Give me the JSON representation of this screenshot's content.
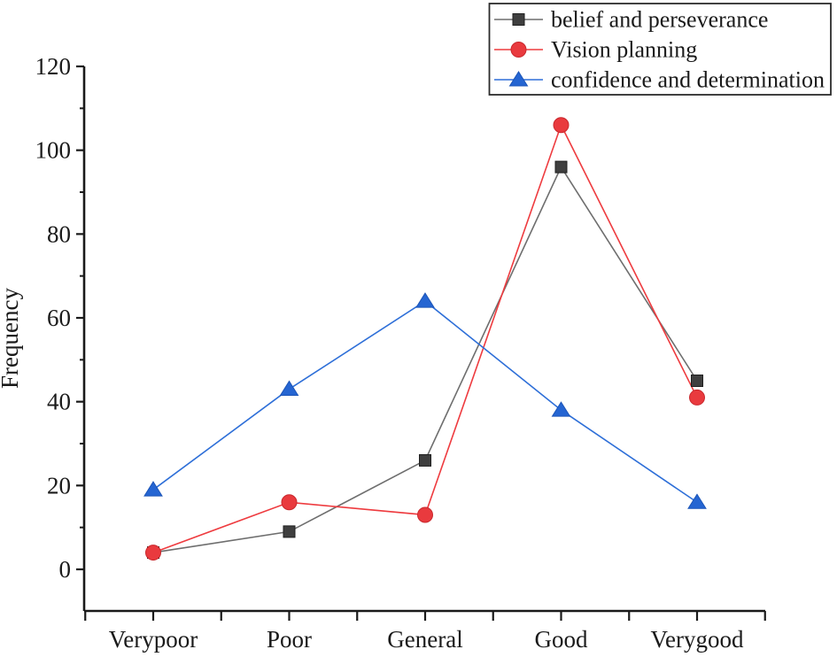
{
  "chart_data": {
    "type": "line",
    "title": "",
    "xlabel": "",
    "ylabel": "Frequency",
    "categories": [
      "Verypoor",
      "Poor",
      "General",
      "Good",
      "Verygood"
    ],
    "series": [
      {
        "name": "belief and perseverance",
        "marker": "square",
        "line_color": "#6e6e6e",
        "marker_color": "#3f3f3f",
        "marker_edge_color": "#1f1f1f",
        "values": [
          4,
          9,
          26,
          96,
          45
        ]
      },
      {
        "name": "Vision planning",
        "marker": "circle",
        "line_color": "#ee3b3f",
        "marker_color": "#e93a3e",
        "marker_edge_color": "#c9282d",
        "values": [
          4,
          16,
          13,
          106,
          41
        ]
      },
      {
        "name": "confidence and determination",
        "marker": "triangle",
        "line_color": "#2e6fd8",
        "marker_color": "#2565d2",
        "marker_edge_color": "#1c55b8",
        "values": [
          19,
          43,
          64,
          38,
          16
        ]
      }
    ],
    "ylim": [
      0,
      120
    ],
    "y_major_ticks": [
      0,
      20,
      40,
      60,
      80,
      100,
      120
    ],
    "y_minor_ticks": [
      10,
      30,
      50,
      70,
      90,
      110
    ],
    "grid": false,
    "legend_position": "top-right",
    "axis_color": "#1a1a1a",
    "background_color": "#ffffff"
  }
}
